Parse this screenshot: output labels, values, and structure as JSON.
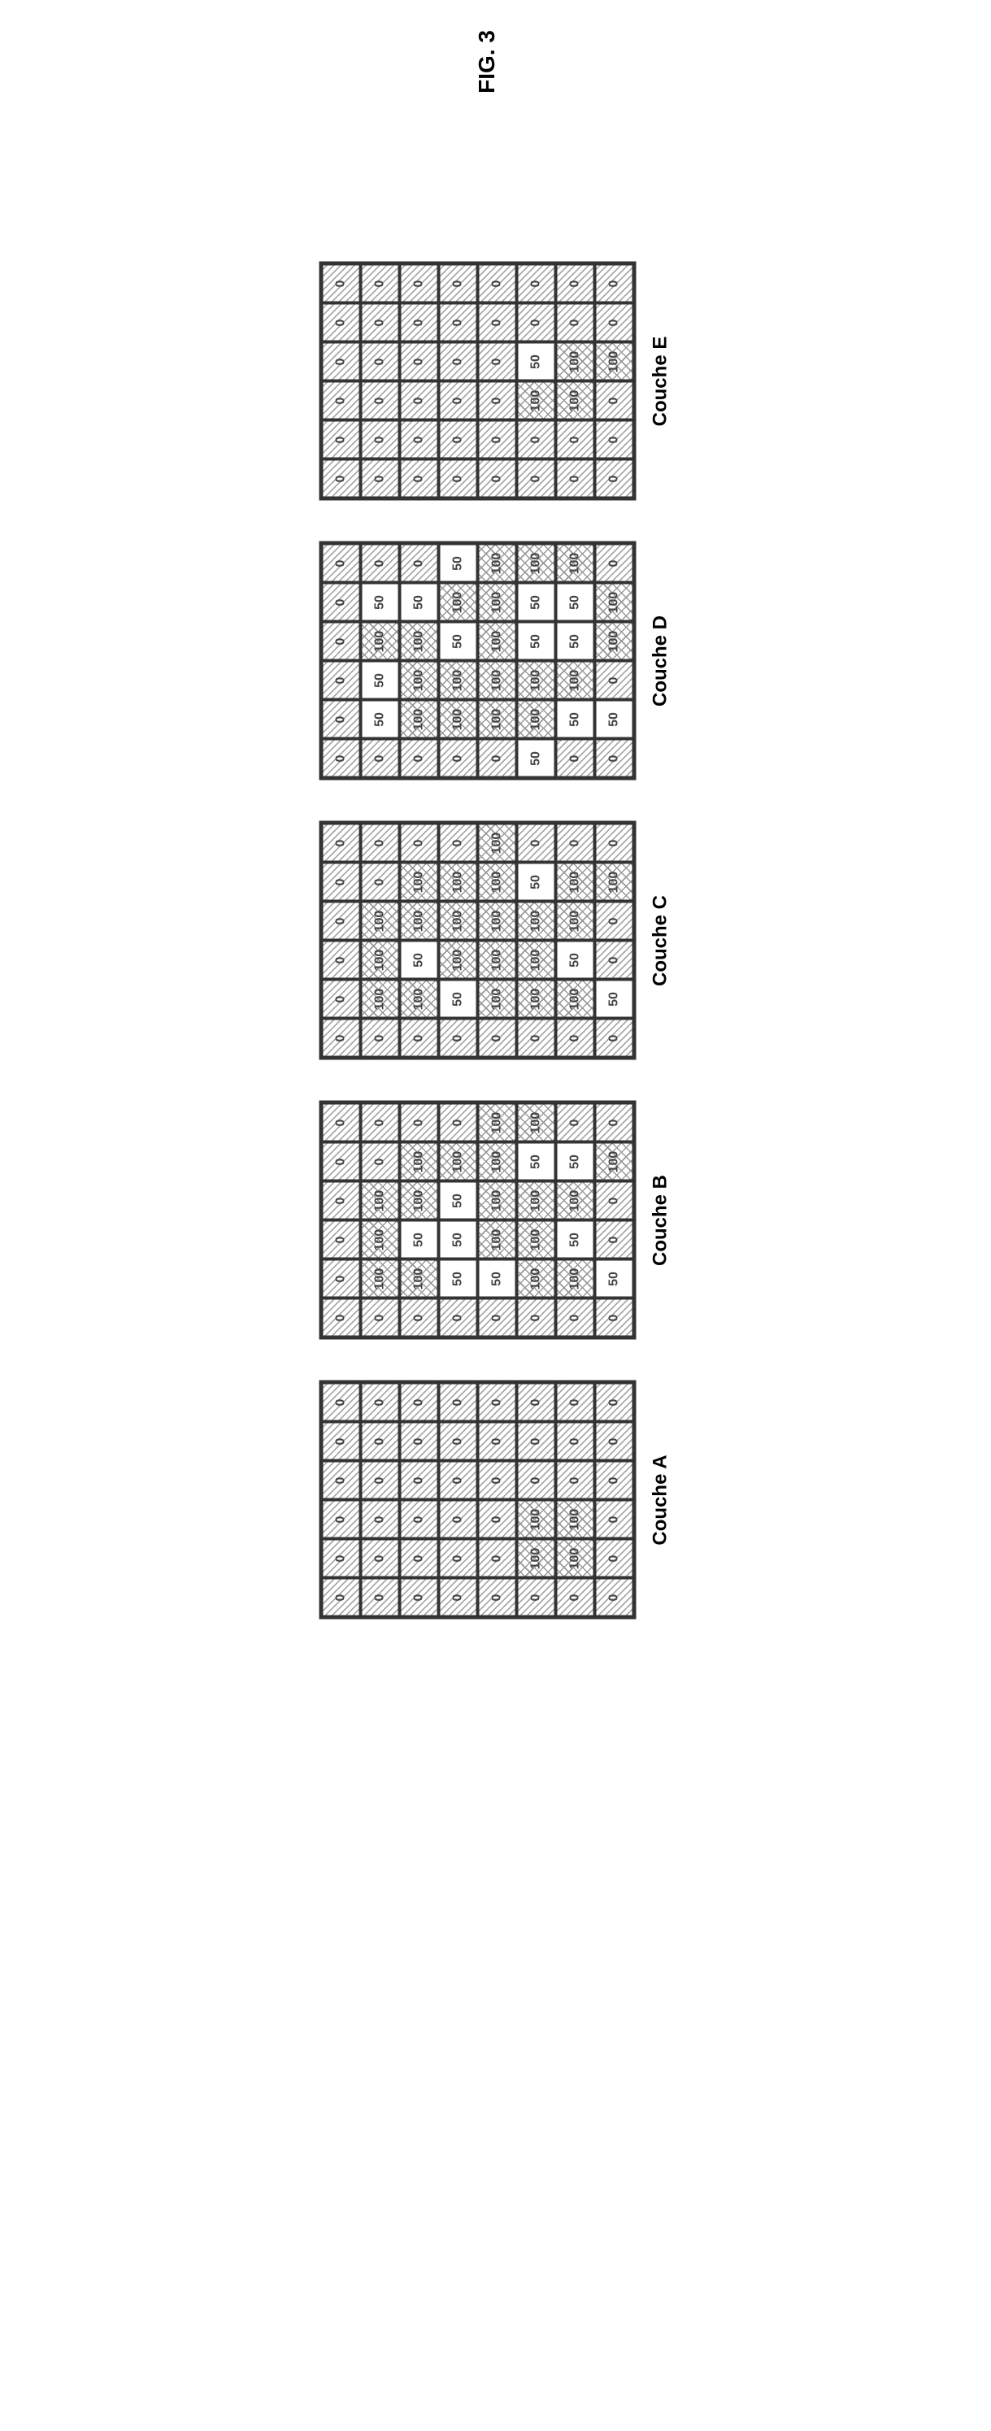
{
  "figure_title": "FIG. 3",
  "cell_size": 48,
  "rows": 8,
  "cols": 6,
  "cell_colors": {
    "0": "hatched-diagonal",
    "50": "white",
    "100": "crosshatch"
  },
  "border_color": "#333333",
  "background_color": "#ffffff",
  "label_fontsize": 24,
  "cell_fontsize": 16,
  "layers": [
    {
      "label": "Couche A",
      "data": [
        [
          0,
          0,
          0,
          0,
          0,
          0
        ],
        [
          0,
          0,
          0,
          0,
          0,
          0
        ],
        [
          0,
          0,
          0,
          0,
          0,
          0
        ],
        [
          0,
          0,
          0,
          0,
          0,
          0
        ],
        [
          0,
          0,
          0,
          0,
          0,
          0
        ],
        [
          0,
          100,
          100,
          0,
          0,
          0
        ],
        [
          0,
          100,
          100,
          0,
          0,
          0
        ],
        [
          0,
          0,
          0,
          0,
          0,
          0
        ]
      ]
    },
    {
      "label": "Couche B",
      "data": [
        [
          0,
          0,
          0,
          0,
          0,
          0
        ],
        [
          0,
          100,
          100,
          100,
          0,
          0
        ],
        [
          0,
          100,
          50,
          100,
          100,
          0
        ],
        [
          0,
          50,
          50,
          50,
          100,
          0
        ],
        [
          0,
          50,
          100,
          100,
          100,
          100
        ],
        [
          0,
          100,
          100,
          100,
          50,
          100
        ],
        [
          0,
          100,
          50,
          100,
          50,
          0
        ],
        [
          0,
          50,
          0,
          0,
          100,
          0
        ]
      ]
    },
    {
      "label": "Couche C",
      "data": [
        [
          0,
          0,
          0,
          0,
          0,
          0
        ],
        [
          0,
          100,
          100,
          100,
          0,
          0
        ],
        [
          0,
          100,
          50,
          100,
          100,
          0
        ],
        [
          0,
          50,
          100,
          100,
          100,
          0
        ],
        [
          0,
          100,
          100,
          100,
          100,
          100
        ],
        [
          0,
          100,
          100,
          100,
          50,
          0
        ],
        [
          0,
          100,
          50,
          100,
          100,
          0
        ],
        [
          0,
          50,
          0,
          0,
          100,
          0
        ]
      ]
    },
    {
      "label": "Couche D",
      "data": [
        [
          0,
          0,
          0,
          0,
          0,
          0
        ],
        [
          0,
          50,
          50,
          100,
          50,
          0
        ],
        [
          0,
          100,
          100,
          100,
          50,
          0
        ],
        [
          0,
          100,
          100,
          50,
          100,
          50
        ],
        [
          0,
          100,
          100,
          100,
          100,
          100
        ],
        [
          50,
          100,
          100,
          50,
          50,
          100
        ],
        [
          0,
          50,
          100,
          50,
          50,
          100
        ],
        [
          0,
          50,
          0,
          100,
          100,
          0
        ]
      ]
    },
    {
      "label": "Couche E",
      "data": [
        [
          0,
          0,
          0,
          0,
          0,
          0
        ],
        [
          0,
          0,
          0,
          0,
          0,
          0
        ],
        [
          0,
          0,
          0,
          0,
          0,
          0
        ],
        [
          0,
          0,
          0,
          0,
          0,
          0
        ],
        [
          0,
          0,
          0,
          0,
          0,
          0
        ],
        [
          0,
          0,
          100,
          50,
          0,
          0
        ],
        [
          0,
          0,
          100,
          100,
          0,
          0
        ],
        [
          0,
          0,
          0,
          100,
          0,
          0
        ]
      ]
    }
  ]
}
